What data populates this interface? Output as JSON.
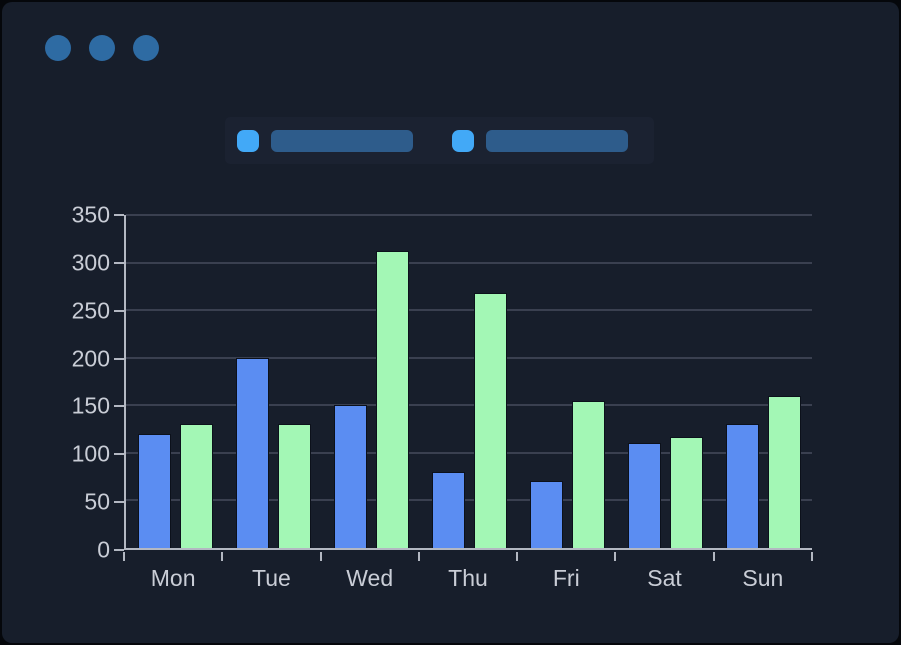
{
  "window": {
    "background": "#171e2b",
    "controls": {
      "dot_count": 3,
      "dot_color": "#2e6ba3"
    }
  },
  "legend": {
    "band_color": "#1b2231",
    "items": [
      {
        "swatch_color": "#42a9f7",
        "label_text": "",
        "label_redacted": true,
        "redaction_color": "#2e5c8b"
      },
      {
        "swatch_color": "#42a9f7",
        "label_text": "",
        "label_redacted": true,
        "redaction_color": "#2e5c8b"
      }
    ]
  },
  "chart_data": {
    "type": "bar",
    "categories": [
      "Mon",
      "Tue",
      "Wed",
      "Thu",
      "Fri",
      "Sat",
      "Sun"
    ],
    "series": [
      {
        "name": "blue (legend label redacted)",
        "color": "#5b8df2",
        "values": [
          120,
          200,
          150,
          80,
          70,
          110,
          130
        ]
      },
      {
        "name": "green (legend label redacted)",
        "color": "#a3f7b5",
        "values": [
          130,
          130,
          312,
          268,
          155,
          117,
          160
        ]
      }
    ],
    "title": "",
    "xlabel": "",
    "ylabel": "",
    "ylim": [
      0,
      350
    ],
    "ytick_step": 50,
    "yticks": [
      0,
      50,
      100,
      150,
      200,
      250,
      300,
      350
    ],
    "grid": true,
    "legend_position": "top",
    "colors": {
      "axis": "#b3b8c2",
      "gridline": "#3a4050",
      "tick_label": "#c9cdd6",
      "bar_outline": "#0c111b"
    }
  }
}
